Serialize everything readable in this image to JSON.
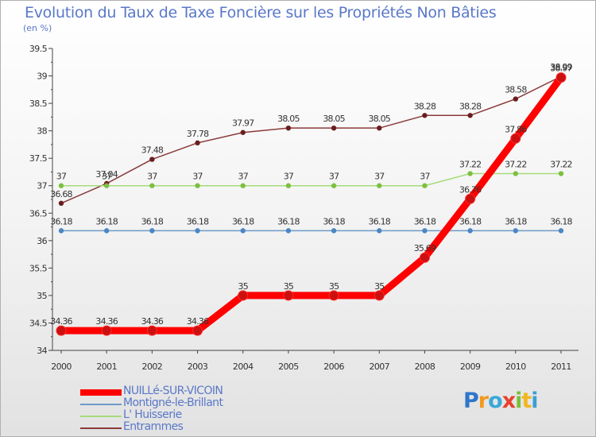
{
  "title": "Evolution du Taux de Taxe Foncière sur les Propriétés Non Bâties",
  "unit": "(en %)",
  "brand": {
    "letters": [
      "P",
      "r",
      "o",
      "x",
      "i",
      "t",
      "i"
    ],
    "colors": [
      "#2f76c9",
      "#f29a1f",
      "#38a8d8",
      "#e8412c",
      "#7bbf3a",
      "#f2b61f",
      "#39a0d5"
    ]
  },
  "chart_data": {
    "type": "line",
    "x": [
      "2000",
      "2001",
      "2002",
      "2003",
      "2004",
      "2005",
      "2006",
      "2007",
      "2008",
      "2009",
      "2010",
      "2011"
    ],
    "ylim": [
      34,
      39.5
    ],
    "yticks": [
      "34",
      "34.5",
      "35",
      "35.5",
      "36",
      "36.5",
      "37",
      "37.5",
      "38",
      "38.5",
      "39",
      "39.5"
    ],
    "grid": false,
    "legend_position": "bottom-left",
    "series": [
      {
        "name": "NUILLé-SUR-VICOIN",
        "color": "#ff0000",
        "marker": "#cc1010",
        "width": 9,
        "values": [
          34.36,
          34.36,
          34.36,
          34.36,
          35,
          35,
          35,
          35,
          35.69,
          36.76,
          37.86,
          38.97
        ],
        "labels": [
          "34.36",
          "34.36",
          "34.36",
          "34.36",
          "35",
          "35",
          "35",
          "35",
          "35.69",
          "36.76",
          "37.86",
          "38.97"
        ]
      },
      {
        "name": "Montigné-le-Brillant",
        "color": "#6c9ac8",
        "marker": "#4a86c4",
        "width": 1.5,
        "values": [
          36.18,
          36.18,
          36.18,
          36.18,
          36.18,
          36.18,
          36.18,
          36.18,
          36.18,
          36.18,
          36.18,
          36.18
        ],
        "labels": [
          "36.18",
          "36.18",
          "36.18",
          "36.18",
          "36.18",
          "36.18",
          "36.18",
          "36.18",
          "36.18",
          "36.18",
          "36.18",
          "36.18"
        ]
      },
      {
        "name": "L' Huisserie",
        "color": "#a6dc7a",
        "marker": "#7cc040",
        "width": 1.5,
        "values": [
          37,
          37,
          37,
          37,
          37,
          37,
          37,
          37,
          37,
          37.22,
          37.22,
          37.22
        ],
        "labels": [
          "37",
          "37",
          "37",
          "37",
          "37",
          "37",
          "37",
          "37",
          "37",
          "37.22",
          "37.22",
          "37.22"
        ]
      },
      {
        "name": "Entrammes",
        "color": "#8b3a3a",
        "marker": "#6b1e1e",
        "width": 1.5,
        "values": [
          36.68,
          37.04,
          37.48,
          37.78,
          37.97,
          38.05,
          38.05,
          38.05,
          38.28,
          38.28,
          38.58,
          38.99
        ],
        "labels": [
          "36.68",
          "37.04",
          "37.48",
          "37.78",
          "37.97",
          "38.05",
          "38.05",
          "38.05",
          "38.28",
          "38.28",
          "38.58",
          "38.99"
        ]
      }
    ]
  }
}
